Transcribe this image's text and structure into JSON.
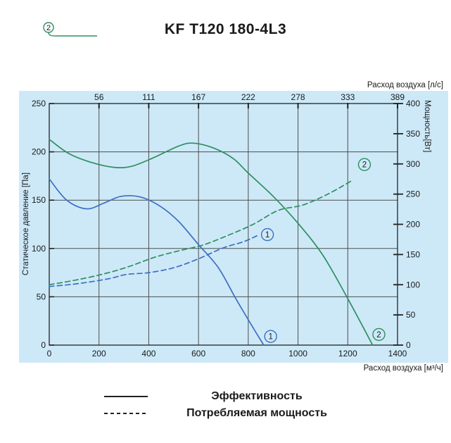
{
  "header": {
    "title": "KF T120 180-4L3",
    "curve_badge": "2"
  },
  "colors": {
    "curve1_blue": "#3e6fc1",
    "curve2_green": "#2e8f5f",
    "plot_background": "#cde9f8",
    "grid": "#4d4d4d",
    "axis": "#222222",
    "text": "#1a1a1a"
  },
  "chart_data": {
    "type": "line",
    "title": "KF T120 180-4L3",
    "background": "#cde9f8",
    "grid": true,
    "x_axis_bottom": {
      "label": "Расход воздуха [м³/ч]",
      "min": 0,
      "max": 1400,
      "ticks": [
        0,
        200,
        400,
        600,
        800,
        1000,
        1200,
        1400
      ]
    },
    "x_axis_top": {
      "label": "Расход воздуха [л/с]",
      "ticks": [
        {
          "label": "56",
          "x": 200
        },
        {
          "label": "111",
          "x": 400
        },
        {
          "label": "167",
          "x": 600
        },
        {
          "label": "222",
          "x": 800
        },
        {
          "label": "278",
          "x": 1000
        },
        {
          "label": "333",
          "x": 1200
        },
        {
          "label": "389",
          "x": 1400
        }
      ]
    },
    "y_axis_left": {
      "label": "Статическое давление [Па]",
      "min": 0,
      "max": 250,
      "ticks": [
        0,
        50,
        100,
        150,
        200,
        250
      ]
    },
    "y_axis_right": {
      "label": "Мощность[Вт]",
      "min": 0,
      "max": 400,
      "ticks": [
        0,
        50,
        100,
        150,
        200,
        250,
        300,
        350,
        400
      ]
    },
    "series": [
      {
        "id": "pressure-curve-1",
        "name": "Эффективность — кривая 1",
        "style": "solid",
        "color": "#3e6fc1",
        "axis": "left",
        "points": [
          [
            0,
            172
          ],
          [
            70,
            150
          ],
          [
            150,
            141
          ],
          [
            220,
            147
          ],
          [
            290,
            154
          ],
          [
            370,
            153
          ],
          [
            450,
            143
          ],
          [
            520,
            128
          ],
          [
            600,
            104
          ],
          [
            680,
            80
          ],
          [
            750,
            48
          ],
          [
            810,
            22
          ],
          [
            862,
            0
          ]
        ]
      },
      {
        "id": "pressure-curve-2",
        "name": "Эффективность — кривая 2",
        "style": "solid",
        "color": "#2e8f5f",
        "axis": "left",
        "points": [
          [
            0,
            213
          ],
          [
            80,
            198
          ],
          [
            170,
            189
          ],
          [
            260,
            184
          ],
          [
            330,
            185
          ],
          [
            420,
            194
          ],
          [
            520,
            206
          ],
          [
            580,
            209
          ],
          [
            660,
            204
          ],
          [
            740,
            193
          ],
          [
            800,
            178
          ],
          [
            900,
            154
          ],
          [
            1000,
            126
          ],
          [
            1100,
            93
          ],
          [
            1200,
            48
          ],
          [
            1300,
            0
          ]
        ]
      },
      {
        "id": "power-curve-1",
        "name": "Потребляемая мощность — кривая 1",
        "style": "dashed",
        "color": "#3e6fc1",
        "axis": "right",
        "points": [
          [
            0,
            97
          ],
          [
            120,
            102
          ],
          [
            240,
            110
          ],
          [
            310,
            117
          ],
          [
            400,
            120
          ],
          [
            500,
            128
          ],
          [
            600,
            143
          ],
          [
            700,
            161
          ],
          [
            780,
            171
          ],
          [
            835,
            181
          ]
        ]
      },
      {
        "id": "power-curve-2",
        "name": "Потребляемая мощность — кривая 2",
        "style": "dashed",
        "color": "#2e8f5f",
        "axis": "right",
        "points": [
          [
            0,
            100
          ],
          [
            110,
            108
          ],
          [
            220,
            118
          ],
          [
            320,
            130
          ],
          [
            420,
            145
          ],
          [
            520,
            156
          ],
          [
            620,
            166
          ],
          [
            720,
            182
          ],
          [
            820,
            200
          ],
          [
            920,
            223
          ],
          [
            1020,
            232
          ],
          [
            1120,
            250
          ],
          [
            1215,
            272
          ]
        ]
      }
    ],
    "markers": [
      {
        "label": "1",
        "color": "#3e6fc1",
        "axis": "left",
        "x": 890,
        "value": 9
      },
      {
        "label": "1",
        "color": "#3e6fc1",
        "axis": "right",
        "x": 877,
        "value": 183
      },
      {
        "label": "2",
        "color": "#2e8f5f",
        "axis": "left",
        "x": 1325,
        "value": 11
      },
      {
        "label": "2",
        "color": "#2e8f5f",
        "axis": "right",
        "x": 1267,
        "value": 299
      }
    ]
  },
  "legend": {
    "items": [
      {
        "style": "solid",
        "label": "Эффективность"
      },
      {
        "style": "dashed",
        "label": "Потребляемая мощность"
      }
    ]
  }
}
